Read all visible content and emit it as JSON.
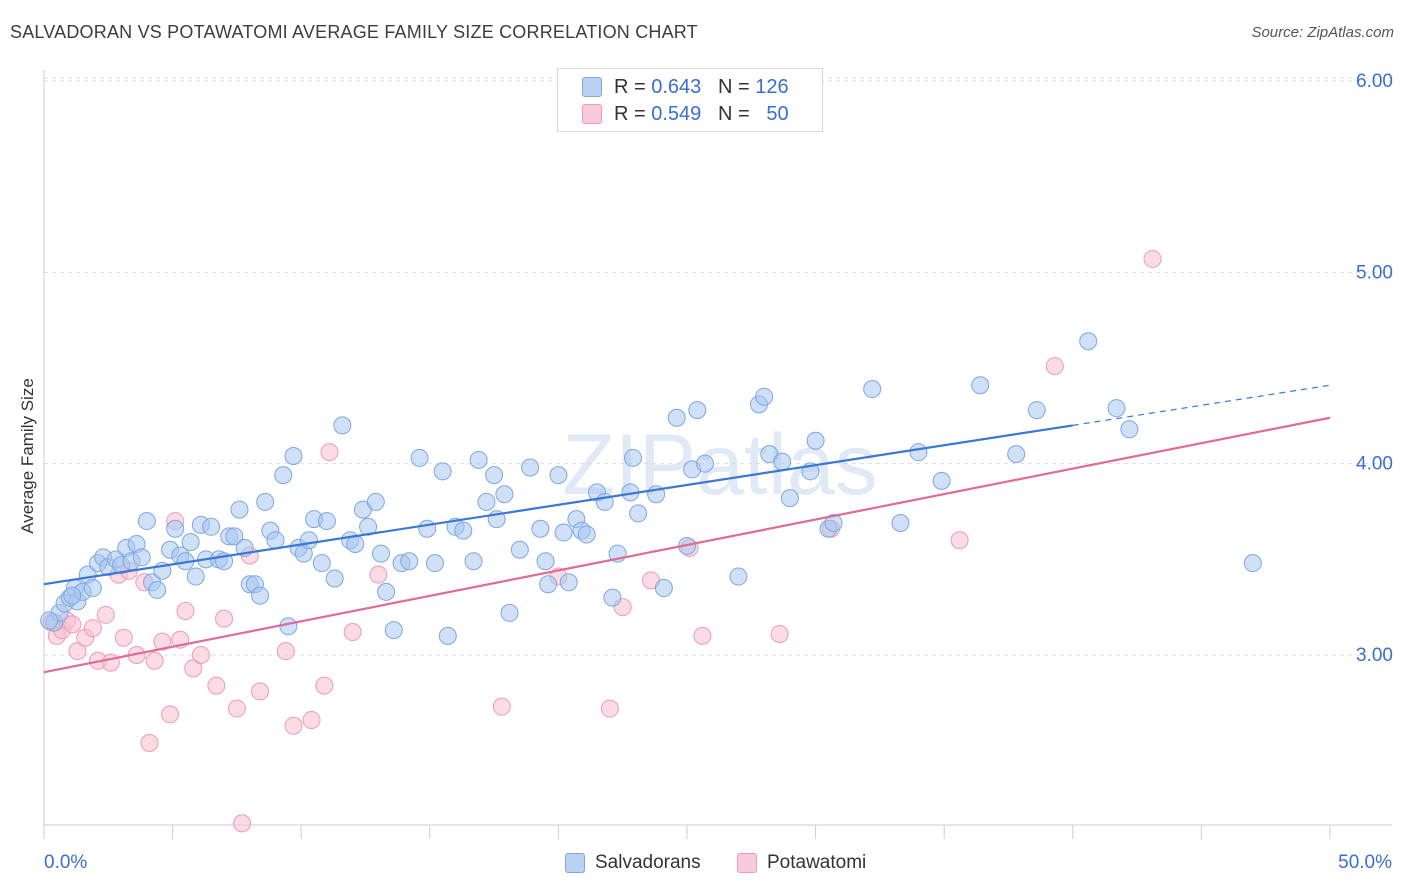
{
  "title": "SALVADORAN VS POTAWATOMI AVERAGE FAMILY SIZE CORRELATION CHART",
  "source": "Source: ZipAtlas.com",
  "watermark": "ZIPatlas",
  "legend": {
    "rows": [
      {
        "r_label": "R =",
        "r_value": "0.643",
        "n_label": "N =",
        "n_value": "126"
      },
      {
        "r_label": "R =",
        "r_value": "0.549",
        "n_label": "N =",
        "n_value": "50"
      }
    ]
  },
  "colors": {
    "blue_fill": "#a8c6f0",
    "blue_stroke": "#7ea7e0",
    "blue_line": "#3a78d4",
    "pink_fill": "#f7bfd0",
    "pink_stroke": "#ee9ab5",
    "pink_line": "#e06a98",
    "grid": "#dddddd",
    "axis_text": "#3a6fd0"
  },
  "chart_data": {
    "type": "scatter",
    "xlabel": "",
    "ylabel": "Average Family Size",
    "x_tick_labels": [
      "0.0%",
      "50.0%"
    ],
    "y_tick_labels": [
      "3.00",
      "4.00",
      "5.00",
      "6.00"
    ],
    "xlim": [
      0,
      50
    ],
    "ylim": [
      2.0,
      6.1
    ],
    "grid": true,
    "legend_position": "top-center",
    "series": [
      {
        "name": "Salvadorans",
        "r": 0.643,
        "n": 126,
        "trend": {
          "x": [
            0,
            40
          ],
          "y": [
            3.37,
            4.2
          ],
          "dashed_extension_to": [
            50,
            4.41
          ]
        },
        "points": [
          [
            0.4,
            3.17
          ],
          [
            0.6,
            3.22
          ],
          [
            0.8,
            3.27
          ],
          [
            1.0,
            3.3
          ],
          [
            1.2,
            3.35
          ],
          [
            1.3,
            3.28
          ],
          [
            1.5,
            3.33
          ],
          [
            1.7,
            3.42
          ],
          [
            1.9,
            3.35
          ],
          [
            2.1,
            3.48
          ],
          [
            2.3,
            3.51
          ],
          [
            2.5,
            3.46
          ],
          [
            2.8,
            3.5
          ],
          [
            3.0,
            3.47
          ],
          [
            3.2,
            3.56
          ],
          [
            3.4,
            3.49
          ],
          [
            3.6,
            3.58
          ],
          [
            3.8,
            3.51
          ],
          [
            4.0,
            3.7
          ],
          [
            4.2,
            3.38
          ],
          [
            4.4,
            3.34
          ],
          [
            4.6,
            3.44
          ],
          [
            4.9,
            3.55
          ],
          [
            5.1,
            3.66
          ],
          [
            5.3,
            3.52
          ],
          [
            5.5,
            3.49
          ],
          [
            5.7,
            3.59
          ],
          [
            5.9,
            3.41
          ],
          [
            6.1,
            3.68
          ],
          [
            6.3,
            3.5
          ],
          [
            6.5,
            3.67
          ],
          [
            6.8,
            3.5
          ],
          [
            7.0,
            3.49
          ],
          [
            7.2,
            3.62
          ],
          [
            7.4,
            3.62
          ],
          [
            7.6,
            3.76
          ],
          [
            7.8,
            3.56
          ],
          [
            8.0,
            3.37
          ],
          [
            8.2,
            3.37
          ],
          [
            8.4,
            3.31
          ],
          [
            8.6,
            3.8
          ],
          [
            8.8,
            3.65
          ],
          [
            9.0,
            3.6
          ],
          [
            9.3,
            3.94
          ],
          [
            9.5,
            3.15
          ],
          [
            9.7,
            4.04
          ],
          [
            9.9,
            3.56
          ],
          [
            10.1,
            3.53
          ],
          [
            10.3,
            3.6
          ],
          [
            10.5,
            3.71
          ],
          [
            10.8,
            3.48
          ],
          [
            11.0,
            3.7
          ],
          [
            11.3,
            3.4
          ],
          [
            11.6,
            4.2
          ],
          [
            11.9,
            3.6
          ],
          [
            12.1,
            3.58
          ],
          [
            12.4,
            3.76
          ],
          [
            12.6,
            3.67
          ],
          [
            12.9,
            3.8
          ],
          [
            13.1,
            3.53
          ],
          [
            13.3,
            3.33
          ],
          [
            13.6,
            3.13
          ],
          [
            13.9,
            3.48
          ],
          [
            14.2,
            3.49
          ],
          [
            14.6,
            4.03
          ],
          [
            14.9,
            3.66
          ],
          [
            15.2,
            3.48
          ],
          [
            15.5,
            3.96
          ],
          [
            15.7,
            3.1
          ],
          [
            16.0,
            3.67
          ],
          [
            16.3,
            3.65
          ],
          [
            16.7,
            3.49
          ],
          [
            16.9,
            4.02
          ],
          [
            17.2,
            3.8
          ],
          [
            17.5,
            3.94
          ],
          [
            17.6,
            3.71
          ],
          [
            17.9,
            3.84
          ],
          [
            18.1,
            3.22
          ],
          [
            18.5,
            3.55
          ],
          [
            18.9,
            3.98
          ],
          [
            19.3,
            3.66
          ],
          [
            19.5,
            3.49
          ],
          [
            19.6,
            3.37
          ],
          [
            20.0,
            3.94
          ],
          [
            20.2,
            3.64
          ],
          [
            20.4,
            3.38
          ],
          [
            20.7,
            3.71
          ],
          [
            20.9,
            3.65
          ],
          [
            21.1,
            3.63
          ],
          [
            21.5,
            3.85
          ],
          [
            21.8,
            3.8
          ],
          [
            22.1,
            3.3
          ],
          [
            22.3,
            3.53
          ],
          [
            22.8,
            3.85
          ],
          [
            22.9,
            4.03
          ],
          [
            23.1,
            3.74
          ],
          [
            23.8,
            3.84
          ],
          [
            24.1,
            3.35
          ],
          [
            24.6,
            4.24
          ],
          [
            25.0,
            3.57
          ],
          [
            25.2,
            3.97
          ],
          [
            25.4,
            4.28
          ],
          [
            25.7,
            4.0
          ],
          [
            27.0,
            3.41
          ],
          [
            27.8,
            4.31
          ],
          [
            28.2,
            4.05
          ],
          [
            28.0,
            4.35
          ],
          [
            28.7,
            4.01
          ],
          [
            29.0,
            3.82
          ],
          [
            29.8,
            3.96
          ],
          [
            30.0,
            4.12
          ],
          [
            30.5,
            3.66
          ],
          [
            30.7,
            3.69
          ],
          [
            32.2,
            4.39
          ],
          [
            33.3,
            3.69
          ],
          [
            34.0,
            4.06
          ],
          [
            34.9,
            3.91
          ],
          [
            36.4,
            4.41
          ],
          [
            37.8,
            4.05
          ],
          [
            38.6,
            4.28
          ],
          [
            40.6,
            4.64
          ],
          [
            41.7,
            4.29
          ],
          [
            42.2,
            4.18
          ],
          [
            47.0,
            3.48
          ],
          [
            0.2,
            3.18
          ],
          [
            1.1,
            3.31
          ]
        ]
      },
      {
        "name": "Potawatomi",
        "r": 0.549,
        "n": 50,
        "trend": {
          "x": [
            0,
            50
          ],
          "y": [
            2.91,
            4.24
          ]
        },
        "points": [
          [
            0.3,
            3.17
          ],
          [
            0.5,
            3.1
          ],
          [
            0.7,
            3.13
          ],
          [
            0.9,
            3.18
          ],
          [
            1.1,
            3.16
          ],
          [
            1.3,
            3.02
          ],
          [
            1.6,
            3.09
          ],
          [
            1.9,
            3.14
          ],
          [
            2.1,
            2.97
          ],
          [
            2.4,
            3.21
          ],
          [
            2.6,
            2.96
          ],
          [
            2.9,
            3.42
          ],
          [
            3.1,
            3.09
          ],
          [
            3.3,
            3.44
          ],
          [
            3.6,
            3.0
          ],
          [
            3.9,
            3.38
          ],
          [
            4.1,
            2.54
          ],
          [
            4.3,
            2.97
          ],
          [
            4.6,
            3.07
          ],
          [
            4.9,
            2.69
          ],
          [
            5.1,
            3.7
          ],
          [
            5.3,
            3.08
          ],
          [
            5.5,
            3.23
          ],
          [
            5.8,
            2.93
          ],
          [
            6.1,
            3.0
          ],
          [
            6.7,
            2.84
          ],
          [
            7.0,
            3.19
          ],
          [
            7.5,
            2.72
          ],
          [
            8.0,
            3.52
          ],
          [
            8.4,
            2.81
          ],
          [
            9.4,
            3.02
          ],
          [
            9.7,
            2.63
          ],
          [
            10.4,
            2.66
          ],
          [
            10.9,
            2.84
          ],
          [
            11.1,
            4.06
          ],
          [
            12.0,
            3.12
          ],
          [
            13.0,
            3.42
          ],
          [
            17.8,
            2.73
          ],
          [
            20.0,
            3.41
          ],
          [
            22.0,
            2.72
          ],
          [
            22.5,
            3.25
          ],
          [
            23.6,
            3.39
          ],
          [
            25.1,
            3.56
          ],
          [
            25.6,
            3.1
          ],
          [
            28.6,
            3.11
          ],
          [
            30.6,
            3.66
          ],
          [
            35.6,
            3.6
          ],
          [
            39.3,
            4.51
          ],
          [
            43.1,
            5.07
          ],
          [
            7.7,
            2.12
          ]
        ]
      }
    ]
  },
  "bottom_legend": [
    "Salvadorans",
    "Potawatomi"
  ]
}
